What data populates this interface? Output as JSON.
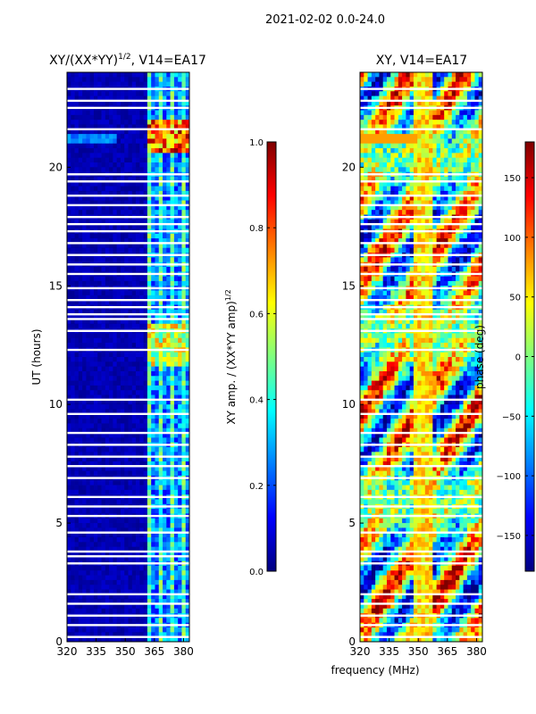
{
  "suptitle": "2021-02-02 0.0-24.0",
  "colors": {
    "jet_stops": [
      "#00007f",
      "#0000ff",
      "#007fff",
      "#00ffff",
      "#7fff7f",
      "#ffff00",
      "#ff7f00",
      "#ff0000",
      "#7f0000"
    ],
    "flag": "#ffffff",
    "frame": "#000000"
  },
  "chart_data": [
    {
      "type": "heatmap",
      "title": "XY/(XX*YY)",
      "title_sup": "1/2",
      "title_suffix": ", V14=EA17",
      "xlabel": "",
      "ylabel": "UT (hours)",
      "xlim": [
        320,
        383
      ],
      "ylim": [
        0,
        24
      ],
      "xticks": [
        "320",
        "335",
        "350",
        "365",
        "380"
      ],
      "xtick_values": [
        320,
        335,
        350,
        365,
        380
      ],
      "yticks": [
        "0",
        "5",
        "10",
        "15",
        "20"
      ],
      "ytick_values": [
        0,
        5,
        10,
        15,
        20
      ],
      "colorbar": {
        "label": "XY amp. / (XX*YY amp)",
        "label_sup": "1/2",
        "range": [
          0.0,
          1.0
        ],
        "ticks": [
          "0.0",
          "0.2",
          "0.4",
          "0.6",
          "0.8",
          "1.0"
        ],
        "tick_values": [
          0.0,
          0.2,
          0.4,
          0.6,
          0.8,
          1.0
        ]
      }
    },
    {
      "type": "heatmap",
      "title": "XY, V14=EA17",
      "xlabel": "frequency (MHz)",
      "ylabel": "",
      "xlim": [
        320,
        383
      ],
      "ylim": [
        0,
        24
      ],
      "xticks": [
        "320",
        "335",
        "350",
        "365",
        "380"
      ],
      "xtick_values": [
        320,
        335,
        350,
        365,
        380
      ],
      "yticks": [
        "0",
        "5",
        "10",
        "15",
        "20"
      ],
      "ytick_values": [
        0,
        5,
        10,
        15,
        20
      ],
      "colorbar": {
        "label": "phase (deg)",
        "range": [
          -180,
          180
        ],
        "ticks": [
          "−150",
          "−100",
          "−50",
          "0",
          "50",
          "100",
          "150"
        ],
        "tick_values": [
          -150,
          -100,
          -50,
          0,
          50,
          100,
          150
        ]
      }
    }
  ],
  "flagged_hours": [
    0.2,
    0.7,
    1.1,
    1.6,
    2.0,
    3.3,
    3.6,
    3.8,
    4.6,
    5.3,
    5.7,
    6.1,
    6.9,
    7.4,
    7.8,
    8.3,
    8.8,
    9.6,
    10.2,
    12.3,
    13.1,
    13.6,
    13.8,
    14.1,
    14.4,
    14.9,
    15.5,
    15.9,
    16.3,
    16.8,
    17.3,
    17.6,
    17.9,
    18.4,
    18.8,
    19.4,
    19.7,
    21.6,
    22.5,
    22.8,
    23.3
  ]
}
